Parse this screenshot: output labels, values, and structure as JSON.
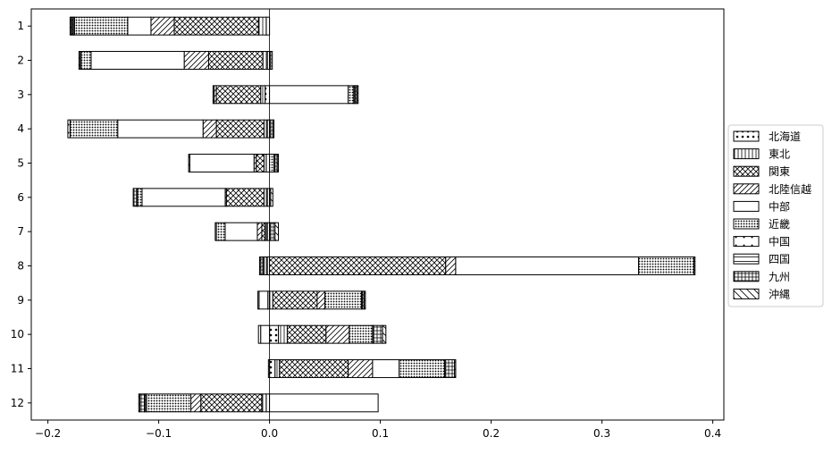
{
  "chart_data": {
    "type": "bar",
    "orientation": "horizontal",
    "stacked": "diverging",
    "title": "",
    "xlabel": "",
    "ylabel": "",
    "categories": [
      "1",
      "2",
      "3",
      "4",
      "5",
      "6",
      "7",
      "8",
      "9",
      "10",
      "11",
      "12"
    ],
    "xlim": [
      -0.215,
      0.41
    ],
    "xticks": [
      -0.2,
      -0.1,
      0.0,
      0.1,
      0.2,
      0.3,
      0.4
    ],
    "xtick_labels": [
      "−0.2",
      "−0.1",
      "0.0",
      "0.1",
      "0.2",
      "0.3",
      "0.4"
    ],
    "grid": false,
    "zero_line": true,
    "legend_position": "right",
    "series": [
      {
        "name": "北海道",
        "pattern": "dots",
        "values": [
          -0.003,
          -0.002,
          -0.004,
          -0.002,
          -0.003,
          -0.002,
          -0.002,
          -0.002,
          -0.0015,
          0.008,
          0.005,
          -0.003
        ]
      },
      {
        "name": "東北",
        "pattern": "vertical",
        "values": [
          -0.007,
          -0.004,
          -0.004,
          -0.003,
          -0.002,
          -0.003,
          -0.002,
          -0.003,
          0.003,
          0.008,
          0.004,
          -0.004
        ]
      },
      {
        "name": "関東",
        "pattern": "crosshatch",
        "values": [
          -0.076,
          -0.049,
          -0.04,
          -0.043,
          -0.007,
          -0.034,
          -0.003,
          0.159,
          0.04,
          0.035,
          0.062,
          -0.055
        ]
      },
      {
        "name": "北陸信越",
        "pattern": "diagonal",
        "values": [
          -0.021,
          -0.022,
          -0.002,
          -0.012,
          -0.002,
          -0.001,
          -0.004,
          0.009,
          0.007,
          0.021,
          0.022,
          -0.009
        ]
      },
      {
        "name": "中部",
        "pattern": "plain",
        "values": [
          -0.021,
          -0.084,
          0.071,
          -0.077,
          -0.058,
          -0.075,
          -0.029,
          0.165,
          -0.008,
          -0.008,
          0.024,
          0.098
        ]
      },
      {
        "name": "近畿",
        "pattern": "dense-dots",
        "values": [
          -0.048,
          -0.009,
          0.005,
          -0.043,
          0.004,
          -0.004,
          -0.008,
          0.05,
          0.033,
          0.021,
          0.041,
          -0.04
        ]
      },
      {
        "name": "中国",
        "pattern": "sparse-dots",
        "values": [
          -0.001,
          -0.001,
          -0.001,
          -0.002,
          -0.001,
          -0.001,
          -0.001,
          -0.001,
          -0.001,
          -0.002,
          -0.001,
          -0.001
        ]
      },
      {
        "name": "四国",
        "pattern": "horizontal",
        "values": [
          -0.001,
          0.001,
          0.001,
          0.001,
          0.001,
          0.001,
          0.001,
          0.001,
          0.0005,
          0.001,
          0.001,
          -0.001
        ]
      },
      {
        "name": "九州",
        "pattern": "grid",
        "values": [
          -0.001,
          0.0015,
          0.002,
          0.002,
          0.002,
          -0.003,
          0.004,
          -0.002,
          0.002,
          0.008,
          0.008,
          -0.004
        ]
      },
      {
        "name": "沖縄",
        "pattern": "backslash",
        "values": [
          -0.001,
          -0.001,
          0.001,
          0.001,
          0.001,
          0.002,
          0.003,
          -0.001,
          0.001,
          0.003,
          0.001,
          -0.001
        ]
      }
    ]
  }
}
